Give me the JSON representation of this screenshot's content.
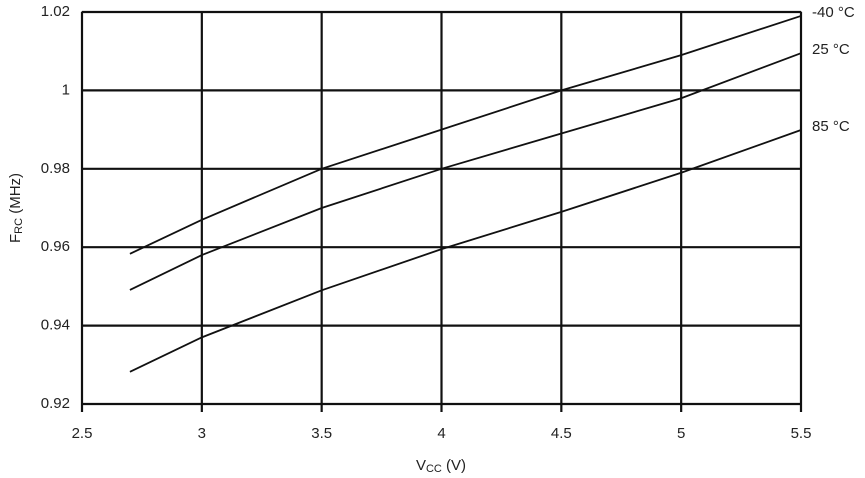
{
  "chart_data": {
    "type": "line",
    "x_label": {
      "main": "V",
      "sub": "CC",
      "rest": " (V)"
    },
    "y_label": {
      "main": "F",
      "sub": "RC",
      "rest": " (MHz)"
    },
    "x": [
      2.7,
      3.0,
      3.5,
      4.0,
      4.5,
      5.0,
      5.5
    ],
    "series": [
      {
        "name": "-40 °C",
        "color": "#111111",
        "values": [
          0.9583,
          0.967,
          0.98,
          0.99,
          1.0,
          1.009,
          1.019
        ]
      },
      {
        "name": "25 °C",
        "color": "#111111",
        "values": [
          0.9491,
          0.958,
          0.97,
          0.98,
          0.989,
          0.998,
          1.0095
        ]
      },
      {
        "name": "85 °C",
        "color": "#111111",
        "values": [
          0.9282,
          0.937,
          0.949,
          0.9595,
          0.969,
          0.979,
          0.9899
        ]
      }
    ],
    "xlim": [
      2.5,
      5.5
    ],
    "xticks": [
      2.5,
      3,
      3.5,
      4,
      4.5,
      5,
      5.5
    ],
    "ylim": [
      0.92,
      1.02
    ],
    "yticks": [
      0.92,
      0.94,
      0.96,
      0.98,
      1,
      1.02
    ],
    "grid": true
  }
}
